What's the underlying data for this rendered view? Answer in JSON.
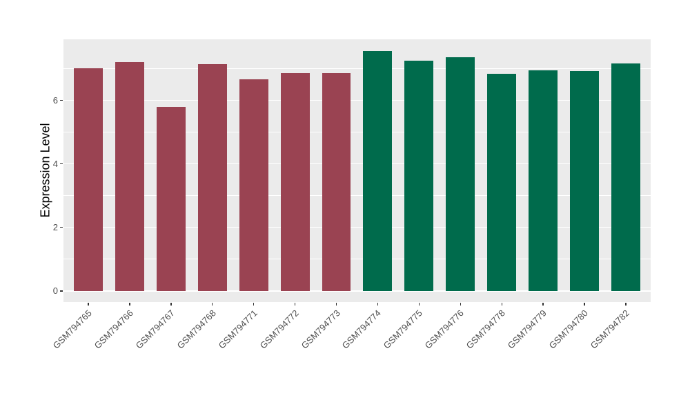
{
  "figure": {
    "background": "#ffffff",
    "panel_background": "#ebebeb",
    "gridline_color": "#ffffff",
    "tick_color": "#333333",
    "tick_label_color": "#4d4d4d",
    "axis_title_color": "#000000"
  },
  "chart_data": {
    "type": "bar",
    "title": "",
    "xlabel": "",
    "ylabel": "Expression Level",
    "categories": [
      "GSM794765",
      "GSM794766",
      "GSM794767",
      "GSM794768",
      "GSM794771",
      "GSM794772",
      "GSM794773",
      "GSM794774",
      "GSM794775",
      "GSM794776",
      "GSM794778",
      "GSM794779",
      "GSM794780",
      "GSM794782"
    ],
    "values": [
      7.0,
      7.2,
      5.8,
      7.13,
      6.66,
      6.85,
      6.85,
      7.55,
      7.25,
      7.35,
      6.83,
      6.95,
      6.93,
      7.15
    ],
    "colors": [
      "#9a4352",
      "#9a4352",
      "#9a4352",
      "#9a4352",
      "#9a4352",
      "#9a4352",
      "#9a4352",
      "#006b4c",
      "#006b4c",
      "#006b4c",
      "#006b4c",
      "#006b4c",
      "#006b4c",
      "#006b4c"
    ],
    "group_colors": {
      "maroon": "#9a4352",
      "green": "#006b4c"
    },
    "y_ticks": [
      0,
      2,
      4,
      6
    ],
    "y_minor_ticks": [
      1,
      3,
      5,
      7
    ],
    "ylim": [
      -0.35,
      7.92
    ],
    "grid": "on",
    "legend": "none",
    "x_label_angle_deg": 45
  }
}
